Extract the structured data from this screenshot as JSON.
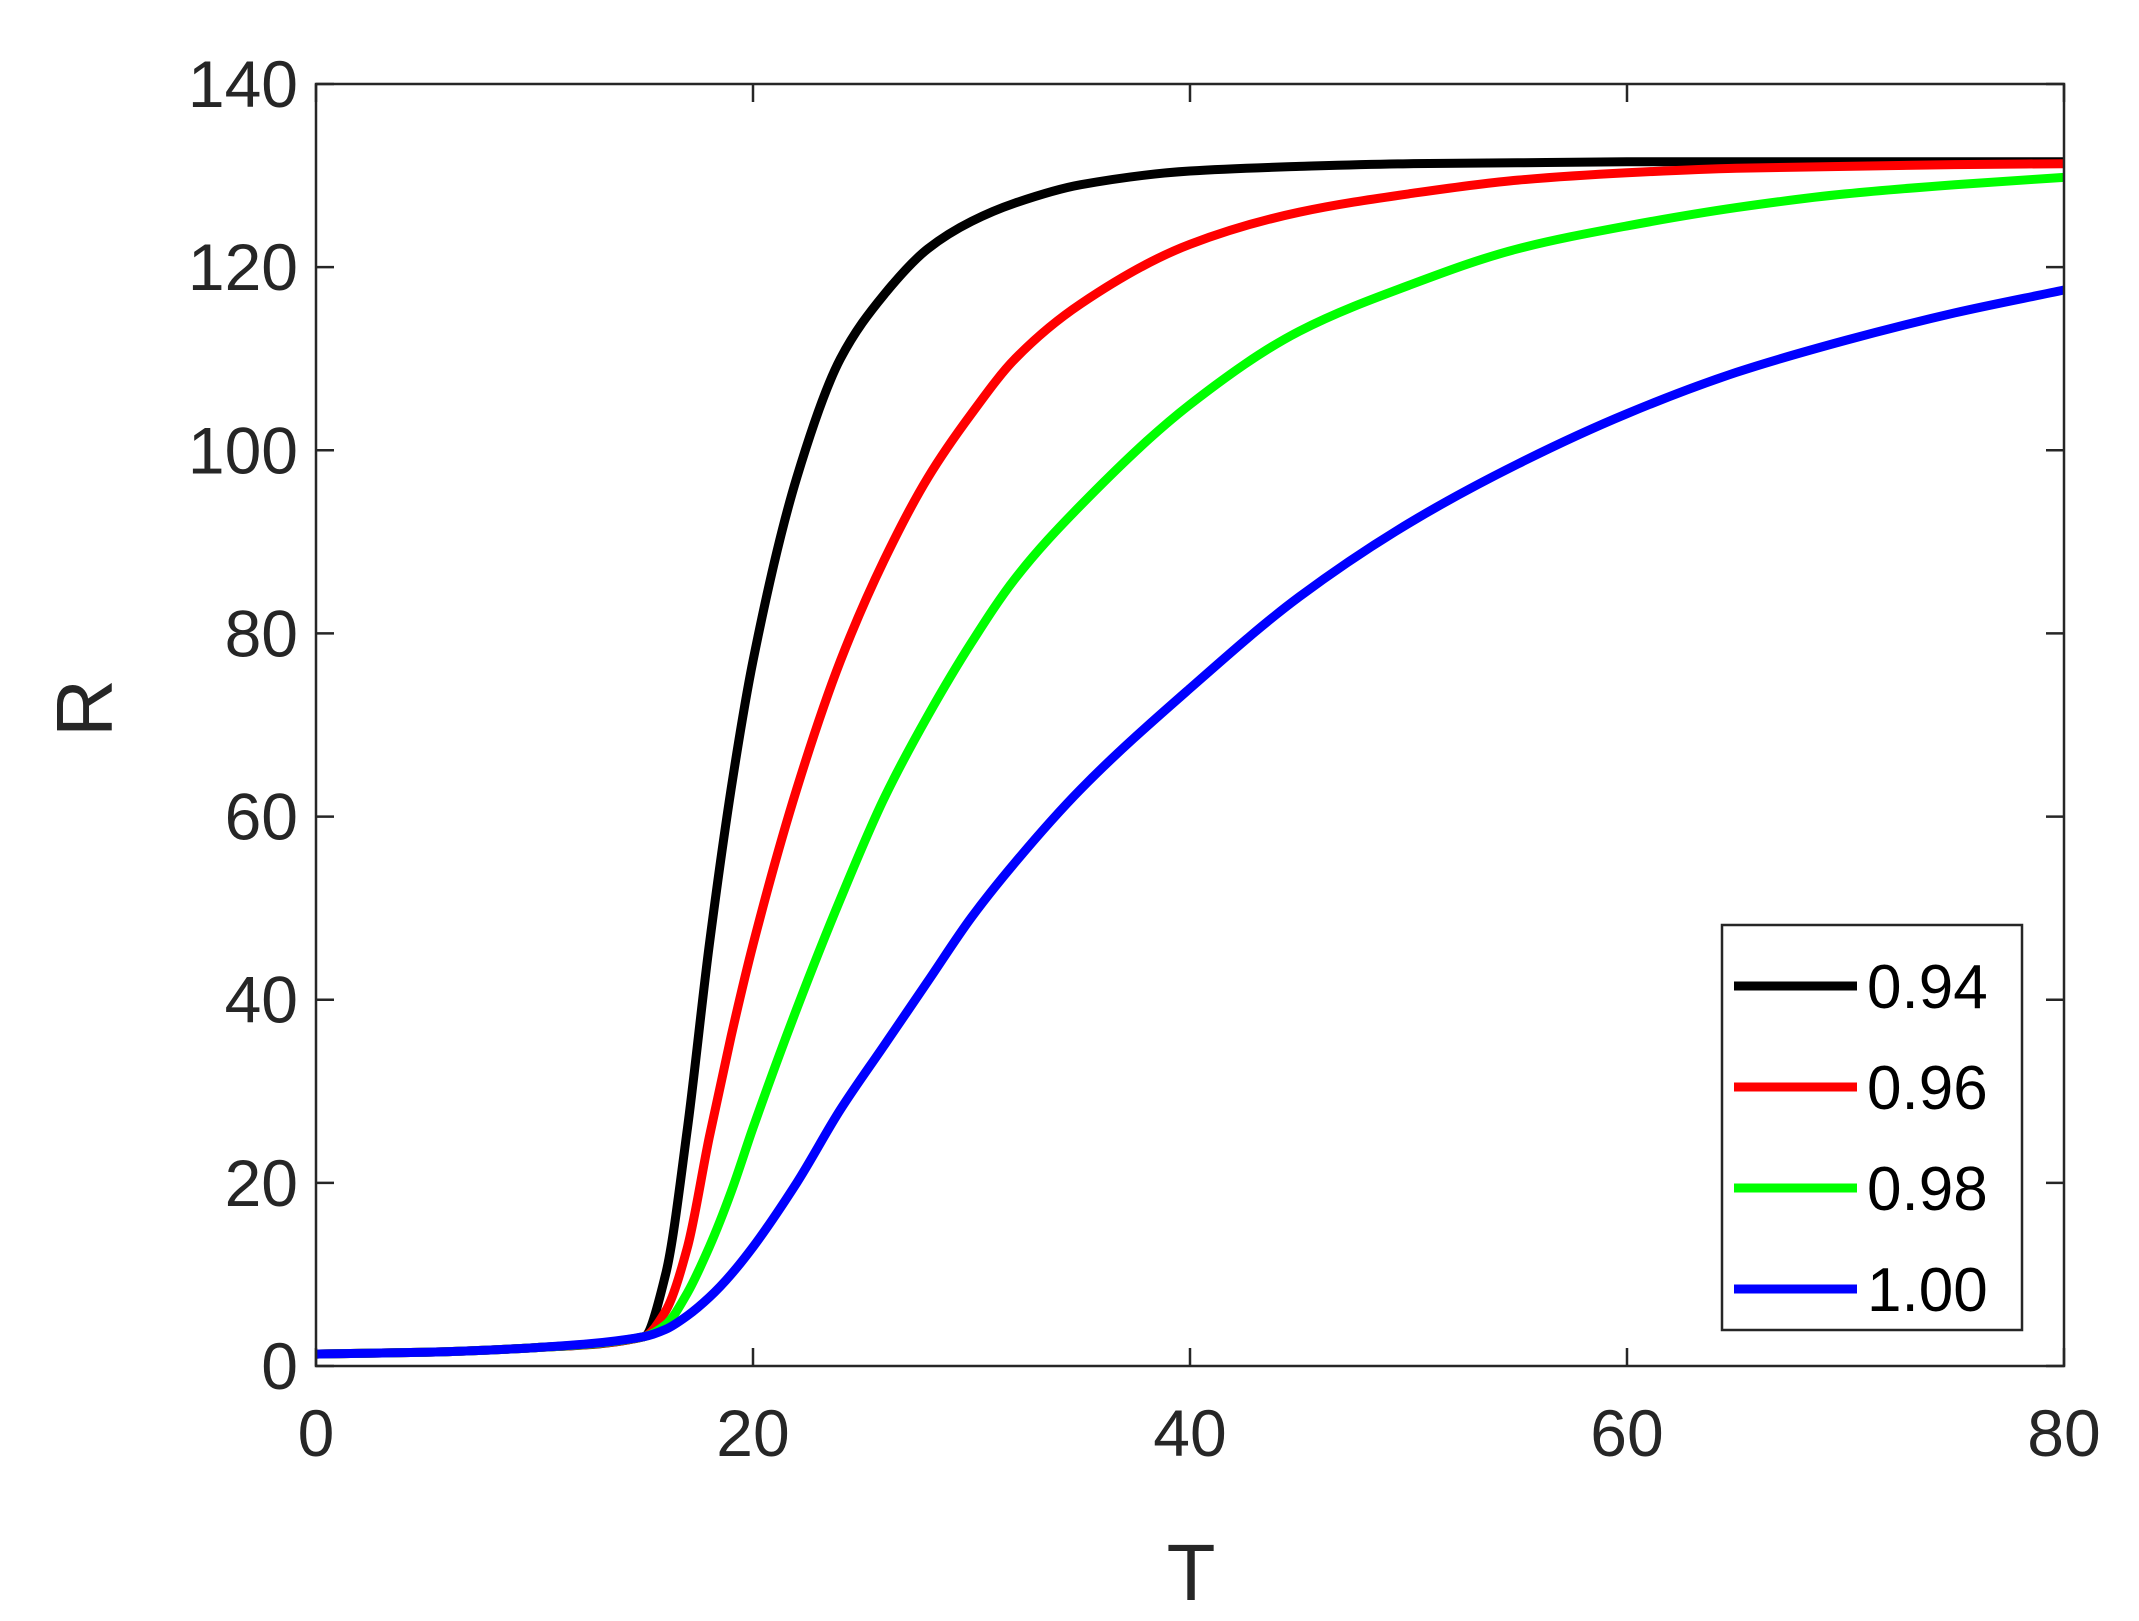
{
  "chart_data": {
    "type": "line",
    "title": "",
    "xlabel": "T",
    "ylabel": "R",
    "xlim": [
      0,
      80
    ],
    "ylim": [
      0,
      140
    ],
    "xticks": [
      "0",
      "20",
      "40",
      "60",
      "80"
    ],
    "yticks": [
      "0",
      "20",
      "40",
      "60",
      "80",
      "100",
      "120",
      "140"
    ],
    "grid": false,
    "legend_position": "bottom-right",
    "x": [
      0,
      5,
      10,
      15,
      16,
      17,
      18,
      19,
      20,
      22,
      24,
      26,
      28,
      30,
      32,
      35,
      40,
      45,
      50,
      55,
      60,
      65,
      70,
      75,
      80
    ],
    "series": [
      {
        "name": "0.94",
        "color": "#000000",
        "values": [
          1.3,
          1.5,
          2.0,
          3.2,
          10,
          26,
          46,
          63,
          77,
          97,
          110,
          117,
          122,
          125,
          127,
          129,
          130.5,
          131,
          131.3,
          131.4,
          131.5,
          131.5,
          131.5,
          131.5,
          131.5
        ]
      },
      {
        "name": "0.96",
        "color": "#ff0000",
        "values": [
          1.3,
          1.5,
          2.0,
          3.2,
          6,
          13,
          25,
          36,
          46,
          63,
          77,
          88,
          97,
          104,
          110,
          116,
          122.5,
          126,
          128,
          129.5,
          130.3,
          130.8,
          131,
          131.2,
          131.3
        ]
      },
      {
        "name": "0.98",
        "color": "#00ff00",
        "values": [
          1.3,
          1.5,
          2.0,
          3.2,
          4.5,
          8,
          13,
          19,
          26,
          39,
          51,
          62,
          71,
          79,
          86,
          94,
          105,
          113,
          118,
          122,
          124.5,
          126.5,
          128,
          129,
          129.8
        ]
      },
      {
        "name": "1.00",
        "color": "#0000ff",
        "values": [
          1.3,
          1.5,
          2.0,
          3.2,
          4.0,
          5.5,
          7.5,
          10,
          13,
          20,
          28,
          35,
          42,
          49,
          55,
          63,
          74,
          84,
          92,
          98.5,
          104,
          108.5,
          112,
          115,
          117.5
        ]
      }
    ]
  }
}
